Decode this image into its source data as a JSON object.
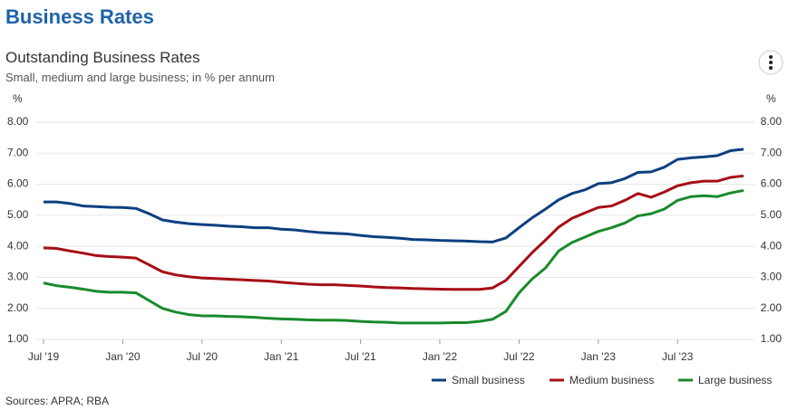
{
  "page_title": "Business Rates",
  "chart_data": {
    "type": "line",
    "title": "Outstanding Business Rates",
    "subtitle": "Small, medium and large business; in % per annum",
    "y_unit": "%",
    "source": "Sources: APRA; RBA",
    "categories": [
      "Jul '19",
      null,
      null,
      null,
      null,
      null,
      "Jan '20",
      null,
      null,
      null,
      null,
      null,
      "Jul '20",
      null,
      null,
      null,
      null,
      null,
      "Jan '21",
      null,
      null,
      null,
      null,
      null,
      "Jul '21",
      null,
      null,
      null,
      null,
      null,
      "Jan '22",
      null,
      null,
      null,
      null,
      null,
      "Jul '22",
      null,
      null,
      null,
      null,
      null,
      "Jan '23",
      null,
      null,
      null,
      null,
      null,
      "Jul '23",
      null,
      null,
      null,
      null,
      null
    ],
    "series": [
      {
        "name": "Small business",
        "color": "#0d3f80",
        "values": [
          5.43,
          5.43,
          5.38,
          5.3,
          5.28,
          5.26,
          5.25,
          5.22,
          5.05,
          4.85,
          4.78,
          4.73,
          4.7,
          4.68,
          4.65,
          4.63,
          4.6,
          4.6,
          4.55,
          4.53,
          4.48,
          4.44,
          4.42,
          4.4,
          4.35,
          4.31,
          4.29,
          4.26,
          4.22,
          4.21,
          4.19,
          4.18,
          4.17,
          4.15,
          4.14,
          4.27,
          4.6,
          4.92,
          5.2,
          5.5,
          5.7,
          5.82,
          6.02,
          6.05,
          6.18,
          6.38,
          6.4,
          6.55,
          6.8,
          6.85,
          6.88,
          6.92,
          7.08,
          7.13
        ]
      },
      {
        "name": "Medium business",
        "color": "#a50f15",
        "values": [
          3.95,
          3.93,
          3.85,
          3.78,
          3.7,
          3.67,
          3.65,
          3.62,
          3.4,
          3.18,
          3.08,
          3.02,
          2.98,
          2.96,
          2.94,
          2.92,
          2.9,
          2.88,
          2.84,
          2.81,
          2.78,
          2.76,
          2.76,
          2.74,
          2.72,
          2.69,
          2.67,
          2.66,
          2.64,
          2.63,
          2.62,
          2.61,
          2.61,
          2.61,
          2.66,
          2.9,
          3.35,
          3.8,
          4.2,
          4.62,
          4.9,
          5.08,
          5.25,
          5.3,
          5.48,
          5.7,
          5.58,
          5.75,
          5.95,
          6.05,
          6.1,
          6.1,
          6.22,
          6.27
        ]
      },
      {
        "name": "Large business",
        "color": "#1a8a2c",
        "values": [
          2.82,
          2.73,
          2.68,
          2.62,
          2.55,
          2.52,
          2.52,
          2.5,
          2.25,
          2.0,
          1.88,
          1.8,
          1.76,
          1.76,
          1.74,
          1.73,
          1.71,
          1.68,
          1.66,
          1.65,
          1.63,
          1.62,
          1.62,
          1.61,
          1.58,
          1.56,
          1.55,
          1.53,
          1.53,
          1.53,
          1.53,
          1.54,
          1.54,
          1.58,
          1.65,
          1.9,
          2.5,
          2.95,
          3.3,
          3.85,
          4.12,
          4.3,
          4.48,
          4.6,
          4.75,
          4.98,
          5.05,
          5.2,
          5.48,
          5.6,
          5.63,
          5.6,
          5.72,
          5.8
        ]
      }
    ],
    "ylim": [
      1,
      8
    ],
    "yticks": [
      {
        "value": 1,
        "label": "1.00"
      },
      {
        "value": 2,
        "label": "2.00"
      },
      {
        "value": 3,
        "label": "3.00"
      },
      {
        "value": 4,
        "label": "4.00"
      },
      {
        "value": 5,
        "label": "5.00"
      },
      {
        "value": 6,
        "label": "6.00"
      },
      {
        "value": 7,
        "label": "7.00"
      },
      {
        "value": 8,
        "label": "8.00"
      }
    ],
    "grid": true,
    "legend": "bottom-right"
  }
}
